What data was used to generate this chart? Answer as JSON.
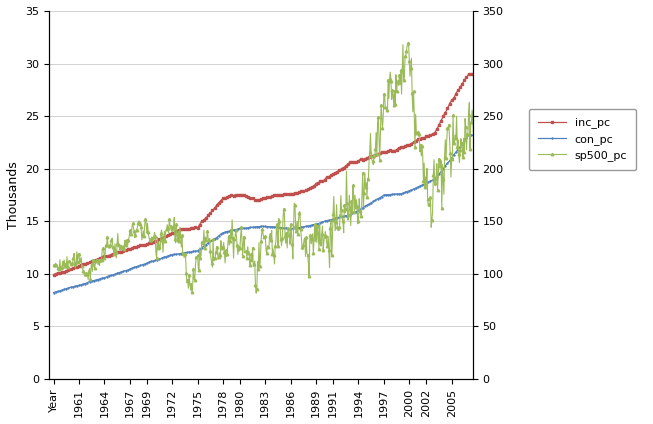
{
  "ylabel_left": "Thousands",
  "ylim_left": [
    0,
    35
  ],
  "ylim_right": [
    0,
    350
  ],
  "yticks_left": [
    0,
    5,
    10,
    15,
    20,
    25,
    30,
    35
  ],
  "yticks_right": [
    0,
    50,
    100,
    150,
    200,
    250,
    300,
    350
  ],
  "xtick_positions": [
    1958,
    1961,
    1964,
    1967,
    1969,
    1972,
    1975,
    1978,
    1980,
    1983,
    1986,
    1989,
    1991,
    1994,
    1997,
    2000,
    2002,
    2005
  ],
  "xtick_labels": [
    "Year",
    "1961",
    "1964",
    "1967",
    "1969",
    "1972",
    "1975",
    "1978",
    "1980",
    "1983",
    "1986",
    "1989",
    "1991",
    "1994",
    "1997",
    "2000",
    "2002",
    "2005"
  ],
  "legend_labels": [
    "inc_pc",
    "con_pc",
    "sp500_pc"
  ],
  "inc_pc_color": "#C0504D",
  "con_pc_color": "#4F81BD",
  "sp500_pc_color": "#9BBB59",
  "background_color": "#FFFFFF",
  "grid_color": "#C0C0C0",
  "xlim": [
    1957.5,
    2007.5
  ]
}
